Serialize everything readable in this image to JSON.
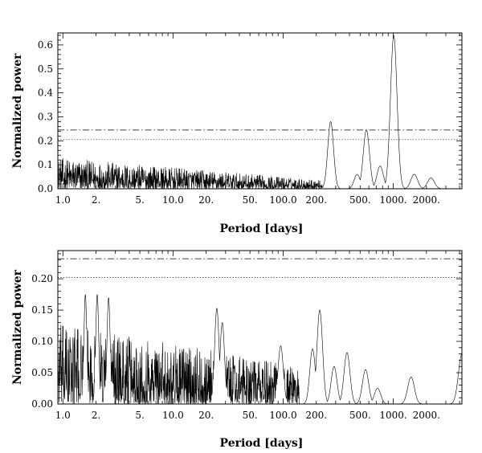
{
  "chart_data": [
    {
      "type": "line",
      "xscale": "log",
      "xlabel": "Period [days]",
      "ylabel": "Normalized power",
      "xlim": [
        0.9,
        4200
      ],
      "ylim": [
        0,
        0.65
      ],
      "x_ticks": [
        1,
        2,
        5,
        10,
        20,
        50,
        100,
        200,
        500,
        1000,
        2000
      ],
      "x_tick_labels": [
        "1.0",
        "2.",
        "5.",
        "10.0",
        "20.",
        "50.",
        "100.0",
        "200.",
        "500.",
        "1000.",
        "2000."
      ],
      "y_ticks": [
        0,
        0.1,
        0.2,
        0.3,
        0.4,
        0.5,
        0.6
      ],
      "y_tick_labels": [
        "0.0",
        "0.1",
        "0.2",
        "0.3",
        "0.4",
        "0.5",
        "0.6"
      ],
      "grid": false,
      "thresholds": [
        {
          "y": 0.245,
          "style": "dash-dot"
        },
        {
          "y": 0.205,
          "style": "dotted"
        }
      ],
      "noise": {
        "x_from": 0.9,
        "x_to": 230,
        "amplitude_start": 0.13,
        "amplitude_end": 0.035
      },
      "peaks": [
        {
          "period": 270,
          "power": 0.28
        },
        {
          "period": 470,
          "power": 0.06
        },
        {
          "period": 570,
          "power": 0.245
        },
        {
          "period": 760,
          "power": 0.095
        },
        {
          "period": 1010,
          "power": 0.64
        },
        {
          "period": 1550,
          "power": 0.06
        },
        {
          "period": 2200,
          "power": 0.045
        }
      ]
    },
    {
      "type": "line",
      "xscale": "log",
      "xlabel": "Period [days]",
      "ylabel": "Normalized power",
      "xlim": [
        0.9,
        4200
      ],
      "ylim": [
        0,
        0.245
      ],
      "x_ticks": [
        1,
        2,
        5,
        10,
        20,
        50,
        100,
        200,
        500,
        1000,
        2000
      ],
      "x_tick_labels": [
        "1.0",
        "2.",
        "5.",
        "10.0",
        "20.",
        "50.",
        "100.0",
        "200.",
        "500.",
        "1000.",
        "2000."
      ],
      "y_ticks": [
        0,
        0.05,
        0.1,
        0.15,
        0.2
      ],
      "y_tick_labels": [
        "0.00",
        "0.05",
        "0.10",
        "0.15",
        "0.20"
      ],
      "grid": false,
      "thresholds": [
        {
          "y": 0.232,
          "style": "dash-dot"
        },
        {
          "y": 0.202,
          "style": "dotted"
        }
      ],
      "noise": {
        "x_from": 0.9,
        "x_to": 140,
        "amplitude_start": 0.13,
        "amplitude_end": 0.06
      },
      "peaks": [
        {
          "period": 1.6,
          "power": 0.175
        },
        {
          "period": 2.05,
          "power": 0.175
        },
        {
          "period": 2.6,
          "power": 0.17
        },
        {
          "period": 25,
          "power": 0.153
        },
        {
          "period": 28,
          "power": 0.13
        },
        {
          "period": 95,
          "power": 0.093
        },
        {
          "period": 185,
          "power": 0.088
        },
        {
          "period": 215,
          "power": 0.15
        },
        {
          "period": 290,
          "power": 0.06
        },
        {
          "period": 380,
          "power": 0.082
        },
        {
          "period": 560,
          "power": 0.055
        },
        {
          "period": 720,
          "power": 0.025
        },
        {
          "period": 1450,
          "power": 0.043
        },
        {
          "period": 4200,
          "power": 0.08
        }
      ]
    }
  ]
}
